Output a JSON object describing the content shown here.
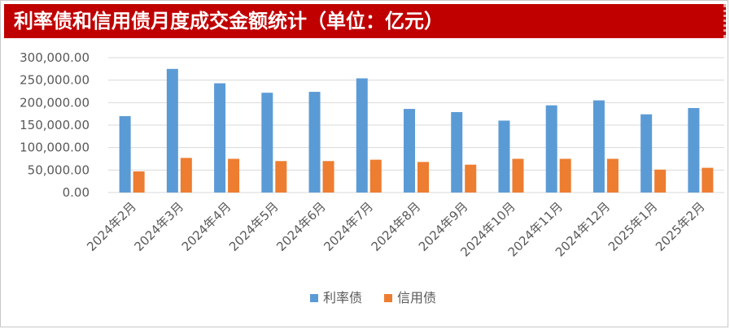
{
  "title": "利率债和信用债月度成交金额统计（单位：亿元）",
  "chart_data": {
    "type": "bar",
    "title": "利率债和信用债月度成交金额统计（单位：亿元）",
    "categories": [
      "2024年2月",
      "2024年3月",
      "2024年4月",
      "2024年5月",
      "2024年6月",
      "2024年7月",
      "2024年8月",
      "2024年9月",
      "2024年10月",
      "2024年11月",
      "2024年12月",
      "2025年1月",
      "2025年2月"
    ],
    "series": [
      {
        "name": "利率债",
        "color": "#5b9bd5",
        "values": [
          170000,
          275000,
          243000,
          222000,
          224000,
          254000,
          186000,
          179000,
          160000,
          194000,
          205000,
          174000,
          188000
        ]
      },
      {
        "name": "信用债",
        "color": "#ed7d31",
        "values": [
          47000,
          77000,
          75000,
          70000,
          70000,
          73000,
          68000,
          62000,
          75000,
          75000,
          75000,
          51000,
          55000
        ]
      }
    ],
    "yticks": [
      "0.00",
      "50,000.00",
      "100,000.00",
      "150,000.00",
      "200,000.00",
      "250,000.00",
      "300,000.00"
    ],
    "ylim": [
      0,
      300000
    ],
    "grid": true,
    "legend_position": "bottom"
  }
}
